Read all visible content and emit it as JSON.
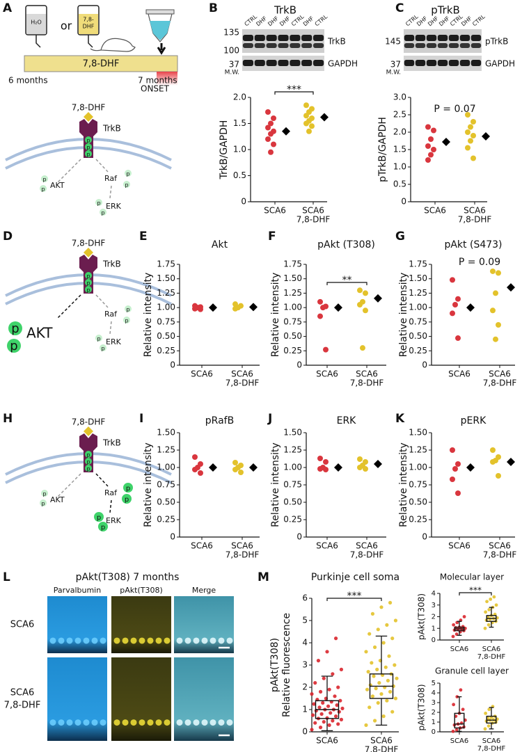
{
  "chart_data": [
    {
      "type": "strip",
      "ylabel": [
        "TrkB/GAPDH"
      ],
      "categories": [
        [
          "SCA6"
        ],
        [
          "SCA6",
          "7,8-DHF"
        ]
      ],
      "points": [
        [
          1.72,
          1.6,
          1.5,
          1.42,
          1.35,
          1.3,
          1.2,
          1.1,
          0.95
        ],
        [
          1.85,
          1.78,
          1.72,
          1.65,
          1.6,
          1.55,
          1.5,
          1.45,
          1.35
        ]
      ],
      "means": [
        1.35,
        1.62
      ],
      "colors": [
        "#d9363e",
        "#e3c22b"
      ],
      "mean_color": "#000000",
      "ylim": [
        0,
        2
      ],
      "yticks": [
        0,
        0.5,
        {
          "value": 1,
          "label": "1.0"
        },
        1.5,
        {
          "value": 2,
          "label": "2.0"
        }
      ],
      "annotation": "***",
      "annotation_style": "bracket"
    },
    {
      "type": "strip",
      "ylabel": [
        "pTrkB/GAPDH"
      ],
      "categories": [
        [
          "SCA6"
        ],
        [
          "SCA6",
          "7,8-DHF"
        ]
      ],
      "points": [
        [
          2.15,
          2.05,
          1.8,
          1.6,
          1.5,
          1.35,
          1.2
        ],
        [
          2.5,
          2.3,
          2.15,
          2.0,
          1.9,
          1.75,
          1.55,
          1.25
        ]
      ],
      "means": [
        1.72,
        1.88
      ],
      "colors": [
        "#d9363e",
        "#e3c22b"
      ],
      "mean_color": "#000000",
      "ylim": [
        0,
        3
      ],
      "yticks": [
        0,
        0.5,
        {
          "value": 1,
          "label": "1.0"
        },
        1.5,
        {
          "value": 2,
          "label": "2.0"
        },
        2.5,
        {
          "value": 3,
          "label": "3.0"
        }
      ],
      "annotation": "P = 0.07",
      "annotation_style": "text"
    },
    {
      "type": "strip",
      "panel": "E",
      "title": "Akt",
      "ylabel": [
        "Relative intensity"
      ],
      "categories": [
        [
          "SCA6"
        ],
        [
          "SCA6",
          "7,8-DHF"
        ]
      ],
      "points": [
        [
          1.03,
          1.01,
          1.0,
          0.98,
          0.97
        ],
        [
          1.06,
          1.03,
          1.0,
          0.98
        ]
      ],
      "means": [
        1.0,
        1.01
      ],
      "colors": [
        "#d9363e",
        "#e3c22b"
      ],
      "mean_color": "#000000",
      "ylim": [
        0,
        1.75
      ],
      "yticks": [
        0,
        0.25,
        {
          "value": 0.5,
          "label": "0.50"
        },
        0.75,
        {
          "value": 1,
          "label": "1.00"
        },
        1.25,
        {
          "value": 1.5,
          "label": "1.50"
        },
        1.75
      ]
    },
    {
      "type": "strip",
      "panel": "F",
      "title": "pAkt (T308)",
      "ylabel": [
        "Relative intensity"
      ],
      "categories": [
        [
          "SCA6"
        ],
        [
          "SCA6",
          "7,8-DHF"
        ]
      ],
      "points": [
        [
          1.1,
          1.02,
          1.0,
          0.85,
          0.27
        ],
        [
          1.3,
          1.25,
          1.1,
          1.05,
          0.95,
          0.3
        ]
      ],
      "means": [
        1.0,
        1.16
      ],
      "colors": [
        "#d9363e",
        "#e3c22b"
      ],
      "mean_color": "#000000",
      "ylim": [
        0,
        1.75
      ],
      "yticks": [
        0,
        0.25,
        {
          "value": 0.5,
          "label": "0.50"
        },
        0.75,
        {
          "value": 1,
          "label": "1.00"
        },
        1.25,
        {
          "value": 1.5,
          "label": "1.50"
        },
        1.75
      ],
      "annotation": "**",
      "annotation_style": "bracket"
    },
    {
      "type": "strip",
      "panel": "G",
      "title": "pAkt (S473)",
      "ylabel": [
        "Relative intensity"
      ],
      "categories": [
        [
          "SCA6"
        ],
        [
          "SCA6",
          "7,8-DHF"
        ]
      ],
      "points": [
        [
          1.48,
          1.15,
          1.05,
          0.9,
          0.47
        ],
        [
          1.63,
          1.6,
          1.25,
          0.95,
          0.7,
          0.45
        ]
      ],
      "means": [
        1.0,
        1.35
      ],
      "colors": [
        "#d9363e",
        "#e3c22b"
      ],
      "mean_color": "#000000",
      "ylim": [
        0,
        1.75
      ],
      "yticks": [
        0,
        0.25,
        {
          "value": 0.5,
          "label": "0.50"
        },
        0.75,
        {
          "value": 1,
          "label": "1.00"
        },
        1.25,
        {
          "value": 1.5,
          "label": "1.50"
        },
        1.75
      ],
      "annotation": "P = 0.09",
      "annotation_style": "text"
    },
    {
      "type": "strip",
      "panel": "I",
      "title": "pRafB",
      "ylabel": [
        "Relative intensity"
      ],
      "categories": [
        [
          "SCA6"
        ],
        [
          "SCA6",
          "7,8-DHF"
        ]
      ],
      "points": [
        [
          1.15,
          1.05,
          1.0,
          0.97,
          0.92
        ],
        [
          1.07,
          1.03,
          1.0,
          0.97,
          0.93
        ]
      ],
      "means": [
        1.0,
        1.0
      ],
      "colors": [
        "#d9363e",
        "#e3c22b"
      ],
      "mean_color": "#000000",
      "ylim": [
        0,
        1.5
      ],
      "yticks": [
        0,
        0.25,
        {
          "value": 0.5,
          "label": "0.50"
        },
        0.75,
        {
          "value": 1,
          "label": "1.00"
        },
        1.25,
        {
          "value": 1.5,
          "label": "1.50"
        }
      ]
    },
    {
      "type": "strip",
      "panel": "J",
      "title": "ERK",
      "ylabel": [
        "Relative intensity"
      ],
      "categories": [
        [
          "SCA6"
        ],
        [
          "SCA6",
          "7,8-DHF"
        ]
      ],
      "points": [
        [
          1.13,
          1.08,
          1.0,
          0.98,
          0.97
        ],
        [
          1.12,
          1.08,
          1.03,
          1.0,
          0.98
        ]
      ],
      "means": [
        1.0,
        1.05
      ],
      "colors": [
        "#d9363e",
        "#e3c22b"
      ],
      "mean_color": "#000000",
      "ylim": [
        0,
        1.5
      ],
      "yticks": [
        0,
        0.25,
        {
          "value": 0.5,
          "label": "0.50"
        },
        0.75,
        {
          "value": 1,
          "label": "1.00"
        },
        1.25,
        {
          "value": 1.5,
          "label": "1.50"
        }
      ]
    },
    {
      "type": "strip",
      "panel": "K",
      "title": "pERK",
      "ylabel": [
        "Relative intensity"
      ],
      "categories": [
        [
          "SCA6"
        ],
        [
          "SCA6",
          "7,8-DHF"
        ]
      ],
      "points": [
        [
          1.25,
          1.05,
          0.98,
          0.83,
          0.63
        ],
        [
          1.25,
          1.15,
          1.1,
          1.08,
          0.88
        ]
      ],
      "means": [
        1.0,
        1.08
      ],
      "colors": [
        "#d9363e",
        "#e3c22b"
      ],
      "mean_color": "#000000",
      "ylim": [
        0,
        1.5
      ],
      "yticks": [
        0,
        0.25,
        {
          "value": 0.5,
          "label": "0.50"
        },
        0.75,
        {
          "value": 1,
          "label": "1.00"
        },
        1.25,
        {
          "value": 1.5,
          "label": "1.50"
        }
      ]
    },
    {
      "type": "box",
      "panel": "M",
      "title": "Purkinje cell soma",
      "ylabel": [
        "pAkt(T308)",
        "Relative fluorescence"
      ],
      "categories": [
        [
          "SCA6"
        ],
        [
          "SCA6",
          "7,8-DHF"
        ]
      ],
      "points": [
        [
          0.1,
          0.2,
          0.3,
          0.35,
          0.4,
          0.45,
          0.5,
          0.55,
          0.6,
          0.62,
          0.7,
          0.75,
          0.8,
          0.85,
          0.9,
          0.95,
          1.0,
          1.0,
          1.05,
          1.1,
          1.15,
          1.2,
          1.25,
          1.3,
          1.35,
          1.4,
          1.45,
          1.5,
          1.6,
          1.7,
          1.8,
          1.9,
          2.0,
          2.2,
          2.4,
          2.6,
          2.8,
          3.2,
          3.6,
          4.2
        ],
        [
          0.3,
          0.5,
          0.7,
          0.9,
          1.1,
          1.3,
          1.4,
          1.5,
          1.6,
          1.7,
          1.8,
          1.9,
          1.95,
          2.0,
          2.05,
          2.1,
          2.2,
          2.3,
          2.4,
          2.5,
          2.55,
          2.6,
          2.7,
          2.8,
          2.9,
          3.0,
          3.1,
          3.2,
          3.4,
          3.6,
          3.8,
          4.0,
          4.2,
          4.4,
          4.6,
          4.8,
          5.0,
          5.3,
          5.6,
          5.8
        ]
      ],
      "boxes": [
        {
          "whisker_low": 0.05,
          "q1": 0.6,
          "median": 1.0,
          "q3": 1.4,
          "whisker_high": 2.5
        },
        {
          "whisker_low": 0.3,
          "q1": 1.5,
          "median": 2.05,
          "q3": 2.6,
          "whisker_high": 4.3
        }
      ],
      "colors": [
        "#d9262e",
        "#e3c22b"
      ],
      "ylim": [
        0,
        6
      ],
      "yticks": [
        0,
        1,
        2,
        3,
        4,
        5,
        6
      ],
      "annotation": "***",
      "annotation_style": "bracket"
    },
    {
      "type": "box",
      "title": "Molecular layer",
      "ylabel": [
        "pAkt(T308)"
      ],
      "categories": [
        [
          "SCA6"
        ],
        [
          "SCA6",
          "7,8-DHF"
        ]
      ],
      "points": [
        [
          0.3,
          0.5,
          0.7,
          0.8,
          0.85,
          0.9,
          0.95,
          1.0,
          1.05,
          1.1,
          1.15,
          1.3,
          1.5,
          1.7,
          2.0
        ],
        [
          1.0,
          1.3,
          1.5,
          1.6,
          1.7,
          1.8,
          1.85,
          1.9,
          2.0,
          2.1,
          2.2,
          2.4,
          2.6,
          2.8,
          3.0,
          3.3,
          3.5,
          3.7
        ]
      ],
      "boxes": [
        {
          "whisker_low": 0.4,
          "q1": 0.8,
          "median": 0.95,
          "q3": 1.1,
          "whisker_high": 1.6
        },
        {
          "whisker_low": 1.1,
          "q1": 1.6,
          "median": 1.85,
          "q3": 2.1,
          "whisker_high": 2.8
        }
      ],
      "colors": [
        "#d9262e",
        "#e3c22b"
      ],
      "ylim": [
        0,
        4
      ],
      "yticks": [
        0,
        1,
        2,
        3,
        4
      ],
      "annotation": "***",
      "annotation_style": "bracket"
    },
    {
      "type": "box",
      "title": "Granule cell layer",
      "ylabel": [
        "pAkt(T308)"
      ],
      "categories": [
        [
          "SCA6"
        ],
        [
          "SCA6",
          "7,8-DHF"
        ]
      ],
      "points": [
        [
          0.05,
          0.2,
          0.4,
          0.5,
          0.7,
          0.8,
          0.9,
          1.2,
          1.6,
          1.9,
          2.3,
          2.8,
          3.6,
          4.3
        ],
        [
          0.3,
          0.6,
          0.9,
          1.0,
          1.1,
          1.2,
          1.25,
          1.3,
          1.4,
          1.5,
          1.6,
          1.9,
          2.3,
          2.6
        ]
      ],
      "boxes": [
        {
          "whisker_low": 0.05,
          "q1": 0.4,
          "median": 0.8,
          "q3": 1.9,
          "whisker_high": 3.6
        },
        {
          "whisker_low": 0.3,
          "q1": 0.9,
          "median": 1.2,
          "q3": 1.6,
          "whisker_high": 2.5
        }
      ],
      "colors": [
        "#d9262e",
        "#e3c22b"
      ],
      "ylim": [
        0,
        5
      ],
      "yticks": [
        0,
        1,
        2,
        3,
        4,
        5
      ]
    }
  ],
  "timeline": {
    "panel": "A",
    "vial_1": "H₂O",
    "or": "or",
    "vial_2": [
      "7,8-",
      "DHF"
    ],
    "bar_label": "7,8-DHF",
    "start": "6 months",
    "end": "7 months",
    "onset": "ONSET"
  },
  "pathways": [
    {
      "ligand": "7,8-DHF",
      "receptor": "TrkB",
      "phospho": "p",
      "akt": "AKT",
      "raf": "Raf",
      "erk": "ERK",
      "active": "none"
    },
    {
      "panel": "D",
      "ligand": "7,8-DHF",
      "receptor": "TrkB",
      "phospho": "p",
      "akt": "AKT",
      "raf": "Raf",
      "erk": "ERK",
      "active": "akt"
    },
    {
      "panel": "H",
      "ligand": "7,8-DHF",
      "receptor": "TrkB",
      "phospho": "p",
      "akt": "AKT",
      "raf": "Raf",
      "erk": "ERK",
      "active": "erk"
    }
  ],
  "blots": [
    {
      "panel": "B",
      "title": "TrkB",
      "lanes": [
        "CTRL",
        "DHF",
        "DHF",
        "DHF",
        "CTRL",
        "DHF",
        "CTRL"
      ],
      "mw": [
        "135",
        "100",
        "37"
      ],
      "mw_label": "M.W.",
      "targets": [
        "TrkB",
        "GAPDH"
      ]
    },
    {
      "panel": "C",
      "title": "pTrkB",
      "lanes": [
        "CTRL",
        "DHF",
        "DHF",
        "DHF",
        "CTRL",
        "DHF",
        "CTRL"
      ],
      "mw": [
        "145",
        "37"
      ],
      "mw_label": "M.W.",
      "targets": [
        "pTrkB",
        "GAPDH"
      ]
    }
  ],
  "micrographs": {
    "panel": "L",
    "title": "pAkt(T308) 7 months",
    "columns": [
      "Parvalbumin",
      "pAkt(T308)",
      "Merge"
    ],
    "rows": [
      [
        "SCA6"
      ],
      [
        "SCA6",
        "7,8-DHF"
      ]
    ]
  }
}
